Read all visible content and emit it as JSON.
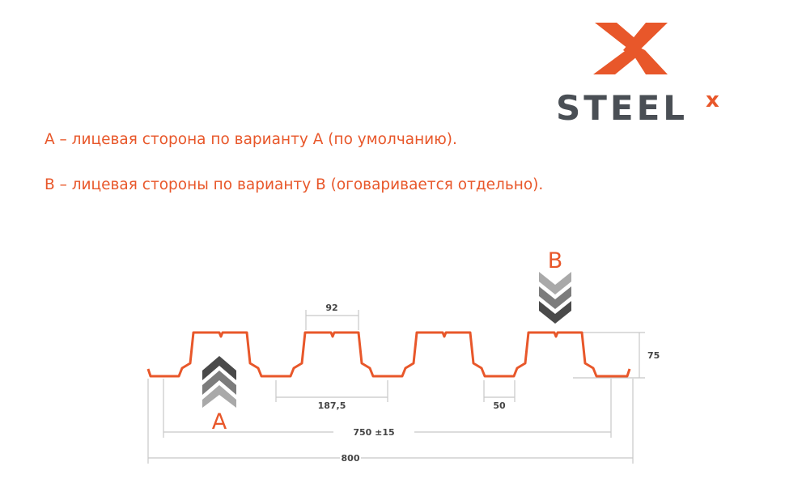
{
  "logo": {
    "text": "STEEL",
    "superscript": "x",
    "brand_color": "#e8572a",
    "text_color": "#4a4f55"
  },
  "notes": [
    "A – лицевая сторона по варианту A (по умолчанию).",
    "B – лицевая стороны по варианту B (оговаривается отдельно)."
  ],
  "diagram": {
    "profile_color": "#e8572a",
    "side_a_label": "A",
    "side_b_label": "B",
    "dimensions": {
      "rib_top_width": "92",
      "pitch": "187,5",
      "bottom_width": "50",
      "height": "75",
      "working_width": "750 ±15",
      "total_width": "800"
    }
  }
}
